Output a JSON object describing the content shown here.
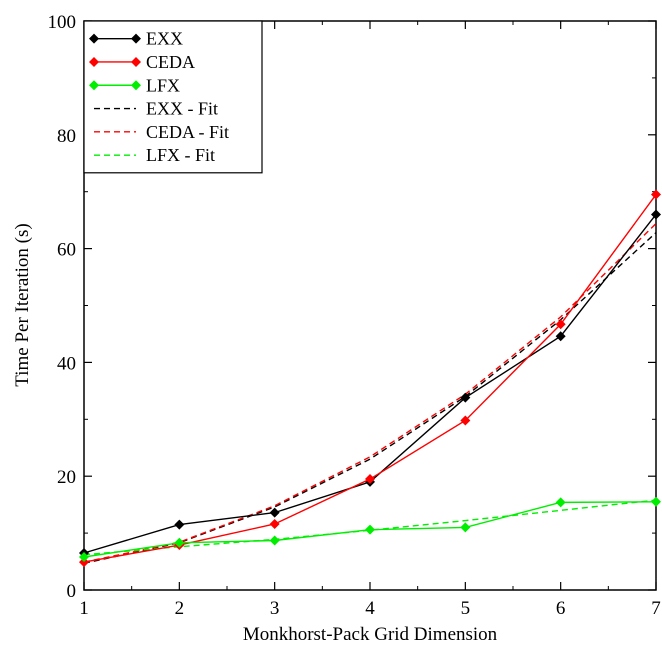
{
  "chart_data": {
    "type": "line",
    "title": "",
    "xlabel": "Monkhorst-Pack Grid Dimension",
    "ylabel": "Time Per Iteration (s)",
    "xlim": [
      1,
      7
    ],
    "ylim": [
      0,
      100
    ],
    "x_ticks": [
      1,
      2,
      3,
      4,
      5,
      6,
      7
    ],
    "y_ticks": [
      0,
      20,
      40,
      60,
      80,
      100
    ],
    "grid": false,
    "legend_position": "top-left",
    "x": [
      1,
      2,
      3,
      4,
      5,
      6,
      7
    ],
    "series": [
      {
        "name": "EXX",
        "style": "solid",
        "marker": "diamond",
        "color": "#000000",
        "values": [
          6.5,
          11.5,
          13.6,
          19.0,
          33.8,
          44.6,
          66.0
        ]
      },
      {
        "name": "CEDA",
        "style": "solid",
        "marker": "diamond",
        "color": "#ff0000",
        "values": [
          4.9,
          7.9,
          11.6,
          19.5,
          29.8,
          46.7,
          69.5
        ]
      },
      {
        "name": "LFX",
        "style": "solid",
        "marker": "diamond",
        "color": "#00ee00",
        "values": [
          5.8,
          8.3,
          8.7,
          10.6,
          11.0,
          15.4,
          15.5
        ]
      },
      {
        "name": "EXX - Fit",
        "style": "dashed",
        "marker": "none",
        "color": "#000000",
        "values": [
          4.7,
          8.3,
          14.6,
          23.0,
          34.0,
          47.5,
          62.8
        ]
      },
      {
        "name": "CEDA - Fit",
        "style": "dashed",
        "marker": "none",
        "color": "#ff0000",
        "values": [
          4.9,
          8.4,
          14.8,
          23.4,
          34.4,
          48.0,
          64.4
        ]
      },
      {
        "name": "LFX - Fit",
        "style": "dashed",
        "marker": "none",
        "color": "#00ee00",
        "values": [
          6.2,
          7.6,
          8.9,
          10.5,
          12.2,
          14.0,
          15.8
        ]
      }
    ]
  }
}
